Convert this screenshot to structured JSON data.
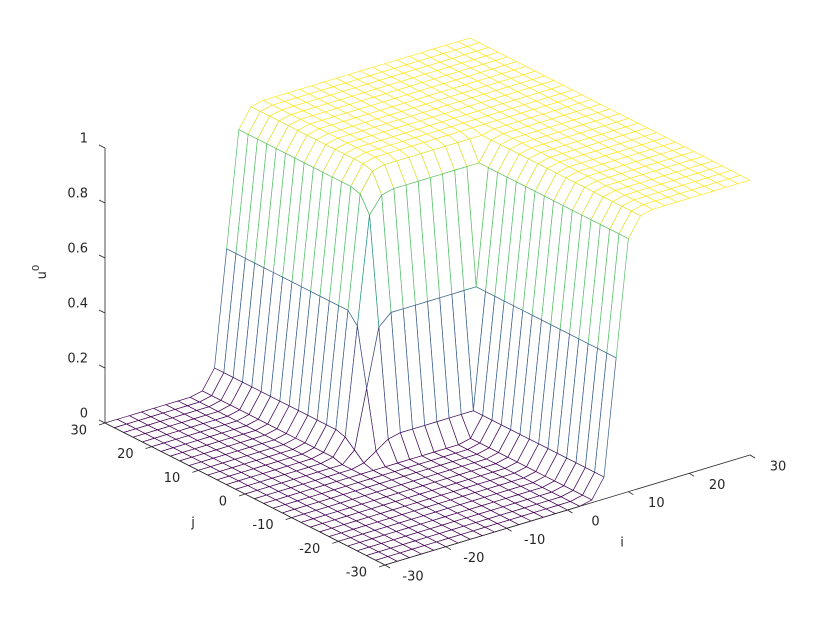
{
  "chart_data": {
    "type": "mesh",
    "xlabel": "i",
    "ylabel": "j",
    "zlabel": {
      "base": "u",
      "sup": "0"
    },
    "xlim": [
      -30,
      30
    ],
    "ylim": [
      -30,
      30
    ],
    "zlim": [
      0,
      1
    ],
    "xticks": [
      -30,
      -20,
      -10,
      0,
      10,
      20,
      30
    ],
    "yticks": [
      -30,
      -20,
      -10,
      0,
      10,
      20,
      30
    ],
    "zticks": [
      0,
      0.2,
      0.4,
      0.6,
      0.8,
      1
    ],
    "colormap": [
      "#440154",
      "#3b528b",
      "#21918c",
      "#5ec962",
      "#fde725"
    ],
    "x": [
      -30,
      -28,
      -26,
      -24,
      -22,
      -20,
      -18,
      -16,
      -14,
      -12,
      -10,
      -8,
      -6,
      -4,
      -2,
      0,
      2,
      4,
      6,
      8,
      10,
      12,
      14,
      16,
      18,
      20,
      22,
      24,
      26,
      28,
      30
    ],
    "y": [
      -30,
      -28,
      -26,
      -24,
      -22,
      -20,
      -18,
      -16,
      -14,
      -12,
      -10,
      -8,
      -6,
      -4,
      -2,
      0,
      2,
      4,
      6,
      8,
      10,
      12,
      14,
      16,
      18,
      20,
      22,
      24,
      26,
      28,
      30
    ],
    "z": [
      [
        0,
        0,
        0,
        0,
        0,
        0,
        0,
        0,
        0,
        0,
        0,
        0,
        0,
        0,
        0,
        0,
        0,
        0.01,
        0.08,
        0.5,
        0.92,
        0.99,
        1,
        1,
        1,
        1,
        1,
        1,
        1,
        1,
        1
      ],
      [
        0,
        0,
        0,
        0,
        0,
        0,
        0,
        0,
        0,
        0,
        0,
        0,
        0,
        0,
        0,
        0,
        0,
        0.01,
        0.08,
        0.5,
        0.92,
        0.99,
        1,
        1,
        1,
        1,
        1,
        1,
        1,
        1,
        1
      ],
      [
        0,
        0,
        0,
        0,
        0,
        0,
        0,
        0,
        0,
        0,
        0,
        0,
        0,
        0,
        0,
        0,
        0,
        0.01,
        0.08,
        0.5,
        0.92,
        0.99,
        1,
        1,
        1,
        1,
        1,
        1,
        1,
        1,
        1
      ],
      [
        0,
        0,
        0,
        0,
        0,
        0,
        0,
        0,
        0,
        0,
        0,
        0,
        0,
        0,
        0,
        0,
        0,
        0.01,
        0.08,
        0.5,
        0.92,
        0.99,
        1,
        1,
        1,
        1,
        1,
        1,
        1,
        1,
        1
      ],
      [
        0,
        0,
        0,
        0,
        0,
        0,
        0,
        0,
        0,
        0,
        0,
        0,
        0,
        0,
        0,
        0,
        0,
        0.01,
        0.08,
        0.5,
        0.92,
        0.99,
        1,
        1,
        1,
        1,
        1,
        1,
        1,
        1,
        1
      ],
      [
        0,
        0,
        0,
        0,
        0,
        0,
        0,
        0,
        0,
        0,
        0,
        0,
        0,
        0,
        0,
        0,
        0,
        0.01,
        0.08,
        0.5,
        0.92,
        0.99,
        1,
        1,
        1,
        1,
        1,
        1,
        1,
        1,
        1
      ],
      [
        0,
        0,
        0,
        0,
        0,
        0,
        0,
        0,
        0,
        0,
        0,
        0,
        0,
        0,
        0,
        0,
        0,
        0.01,
        0.08,
        0.5,
        0.92,
        0.99,
        1,
        1,
        1,
        1,
        1,
        1,
        1,
        1,
        1
      ],
      [
        0,
        0,
        0,
        0,
        0,
        0,
        0,
        0,
        0,
        0,
        0,
        0,
        0,
        0,
        0,
        0,
        0,
        0.01,
        0.08,
        0.5,
        0.92,
        0.99,
        1,
        1,
        1,
        1,
        1,
        1,
        1,
        1,
        1
      ],
      [
        0,
        0,
        0,
        0,
        0,
        0,
        0,
        0,
        0,
        0,
        0,
        0,
        0,
        0,
        0,
        0,
        0,
        0.01,
        0.08,
        0.5,
        0.92,
        0.99,
        1,
        1,
        1,
        1,
        1,
        1,
        1,
        1,
        1
      ],
      [
        0,
        0,
        0,
        0,
        0,
        0,
        0,
        0,
        0,
        0,
        0,
        0,
        0,
        0,
        0,
        0,
        0,
        0.01,
        0.08,
        0.5,
        0.92,
        0.99,
        1,
        1,
        1,
        1,
        1,
        1,
        1,
        1,
        1
      ],
      [
        0,
        0,
        0,
        0,
        0,
        0,
        0,
        0,
        0,
        0,
        0,
        0,
        0,
        0,
        0,
        0,
        0,
        0.01,
        0.08,
        0.5,
        0.92,
        0.99,
        1,
        1,
        1,
        1,
        1,
        1,
        1,
        1,
        1
      ],
      [
        0,
        0,
        0,
        0,
        0,
        0,
        0,
        0,
        0,
        0,
        0,
        0,
        0,
        0,
        0,
        0,
        0,
        0.01,
        0.08,
        0.5,
        0.92,
        0.99,
        1,
        1,
        1,
        1,
        1,
        1,
        1,
        1,
        1
      ],
      [
        0,
        0,
        0,
        0,
        0,
        0,
        0,
        0,
        0,
        0,
        0,
        0,
        0,
        0,
        0,
        0,
        0,
        0.01,
        0.08,
        0.5,
        0.92,
        0.99,
        1,
        1,
        1,
        1,
        1,
        1,
        1,
        1,
        1
      ],
      [
        0,
        0,
        0,
        0,
        0,
        0,
        0,
        0,
        0,
        0,
        0,
        0,
        0,
        0,
        0,
        0,
        0,
        0.01,
        0.08,
        0.5,
        0.92,
        0.99,
        1,
        1,
        1,
        1,
        1,
        1,
        1,
        1,
        1
      ],
      [
        0,
        0,
        0,
        0,
        0,
        0,
        0,
        0,
        0,
        0.01,
        0.04,
        0.07,
        0.08,
        0.08,
        0.08,
        0.08,
        0.08,
        0.08,
        0.08,
        0.5,
        0.92,
        0.99,
        1,
        1,
        1,
        1,
        1,
        1,
        1,
        1,
        1
      ],
      [
        0,
        0,
        0,
        0,
        0,
        0,
        0,
        0,
        0,
        0.04,
        0.25,
        0.46,
        0.5,
        0.5,
        0.5,
        0.5,
        0.5,
        0.5,
        0.5,
        0.5,
        0.92,
        0.99,
        1,
        1,
        1,
        1,
        1,
        1,
        1,
        1,
        1
      ],
      [
        0,
        0,
        0,
        0,
        0,
        0,
        0,
        0,
        0.01,
        0.07,
        0.46,
        0.85,
        0.91,
        0.92,
        0.92,
        0.92,
        0.92,
        0.92,
        0.92,
        0.92,
        0.92,
        0.99,
        1,
        1,
        1,
        1,
        1,
        1,
        1,
        1,
        1
      ],
      [
        0,
        0,
        0,
        0,
        0,
        0,
        0,
        0,
        0.01,
        0.08,
        0.5,
        0.91,
        0.98,
        0.99,
        0.99,
        0.99,
        0.99,
        0.99,
        0.99,
        0.99,
        0.99,
        0.99,
        1,
        1,
        1,
        1,
        1,
        1,
        1,
        1,
        1
      ],
      [
        0,
        0,
        0,
        0,
        0,
        0,
        0,
        0,
        0.01,
        0.08,
        0.5,
        0.92,
        0.99,
        1,
        1,
        1,
        1,
        1,
        1,
        1,
        1,
        1,
        1,
        1,
        1,
        1,
        1,
        1,
        1,
        1,
        1
      ],
      [
        0,
        0,
        0,
        0,
        0,
        0,
        0,
        0,
        0.01,
        0.08,
        0.5,
        0.92,
        0.99,
        1,
        1,
        1,
        1,
        1,
        1,
        1,
        1,
        1,
        1,
        1,
        1,
        1,
        1,
        1,
        1,
        1,
        1
      ],
      [
        0,
        0,
        0,
        0,
        0,
        0,
        0,
        0,
        0.01,
        0.08,
        0.5,
        0.92,
        0.99,
        1,
        1,
        1,
        1,
        1,
        1,
        1,
        1,
        1,
        1,
        1,
        1,
        1,
        1,
        1,
        1,
        1,
        1
      ],
      [
        0,
        0,
        0,
        0,
        0,
        0,
        0,
        0,
        0.01,
        0.08,
        0.5,
        0.92,
        0.99,
        1,
        1,
        1,
        1,
        1,
        1,
        1,
        1,
        1,
        1,
        1,
        1,
        1,
        1,
        1,
        1,
        1,
        1
      ],
      [
        0,
        0,
        0,
        0,
        0,
        0,
        0,
        0,
        0.01,
        0.08,
        0.5,
        0.92,
        0.99,
        1,
        1,
        1,
        1,
        1,
        1,
        1,
        1,
        1,
        1,
        1,
        1,
        1,
        1,
        1,
        1,
        1,
        1
      ],
      [
        0,
        0,
        0,
        0,
        0,
        0,
        0,
        0,
        0.01,
        0.08,
        0.5,
        0.92,
        0.99,
        1,
        1,
        1,
        1,
        1,
        1,
        1,
        1,
        1,
        1,
        1,
        1,
        1,
        1,
        1,
        1,
        1,
        1
      ],
      [
        0,
        0,
        0,
        0,
        0,
        0,
        0,
        0,
        0.01,
        0.08,
        0.5,
        0.92,
        0.99,
        1,
        1,
        1,
        1,
        1,
        1,
        1,
        1,
        1,
        1,
        1,
        1,
        1,
        1,
        1,
        1,
        1,
        1
      ],
      [
        0,
        0,
        0,
        0,
        0,
        0,
        0,
        0,
        0.01,
        0.08,
        0.5,
        0.92,
        0.99,
        1,
        1,
        1,
        1,
        1,
        1,
        1,
        1,
        1,
        1,
        1,
        1,
        1,
        1,
        1,
        1,
        1,
        1
      ],
      [
        0,
        0,
        0,
        0,
        0,
        0,
        0,
        0,
        0.01,
        0.08,
        0.5,
        0.92,
        0.99,
        1,
        1,
        1,
        1,
        1,
        1,
        1,
        1,
        1,
        1,
        1,
        1,
        1,
        1,
        1,
        1,
        1,
        1
      ],
      [
        0,
        0,
        0,
        0,
        0,
        0,
        0,
        0,
        0.01,
        0.08,
        0.5,
        0.92,
        0.99,
        1,
        1,
        1,
        1,
        1,
        1,
        1,
        1,
        1,
        1,
        1,
        1,
        1,
        1,
        1,
        1,
        1,
        1
      ],
      [
        0,
        0,
        0,
        0,
        0,
        0,
        0,
        0,
        0.01,
        0.08,
        0.5,
        0.92,
        0.99,
        1,
        1,
        1,
        1,
        1,
        1,
        1,
        1,
        1,
        1,
        1,
        1,
        1,
        1,
        1,
        1,
        1,
        1
      ],
      [
        0,
        0,
        0,
        0,
        0,
        0,
        0,
        0,
        0.01,
        0.08,
        0.5,
        0.92,
        0.99,
        1,
        1,
        1,
        1,
        1,
        1,
        1,
        1,
        1,
        1,
        1,
        1,
        1,
        1,
        1,
        1,
        1,
        1
      ],
      [
        0,
        0,
        0,
        0,
        0,
        0,
        0,
        0,
        0.01,
        0.08,
        0.5,
        0.92,
        0.99,
        1,
        1,
        1,
        1,
        1,
        1,
        1,
        1,
        1,
        1,
        1,
        1,
        1,
        1,
        1,
        1,
        1,
        1
      ]
    ]
  }
}
